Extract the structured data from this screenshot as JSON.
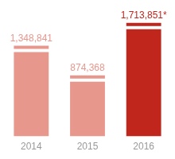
{
  "chart_data": {
    "type": "bar",
    "categories": [
      "2014",
      "2015",
      "2016"
    ],
    "values": [
      1348841,
      874368,
      1713851
    ],
    "value_labels": [
      "1,348,841",
      "874,368",
      "1,713,851*"
    ],
    "colors": [
      "#e8978d",
      "#e8978d",
      "#c0261c"
    ],
    "data_labels": true,
    "grid": false,
    "tick_labels": "x"
  }
}
